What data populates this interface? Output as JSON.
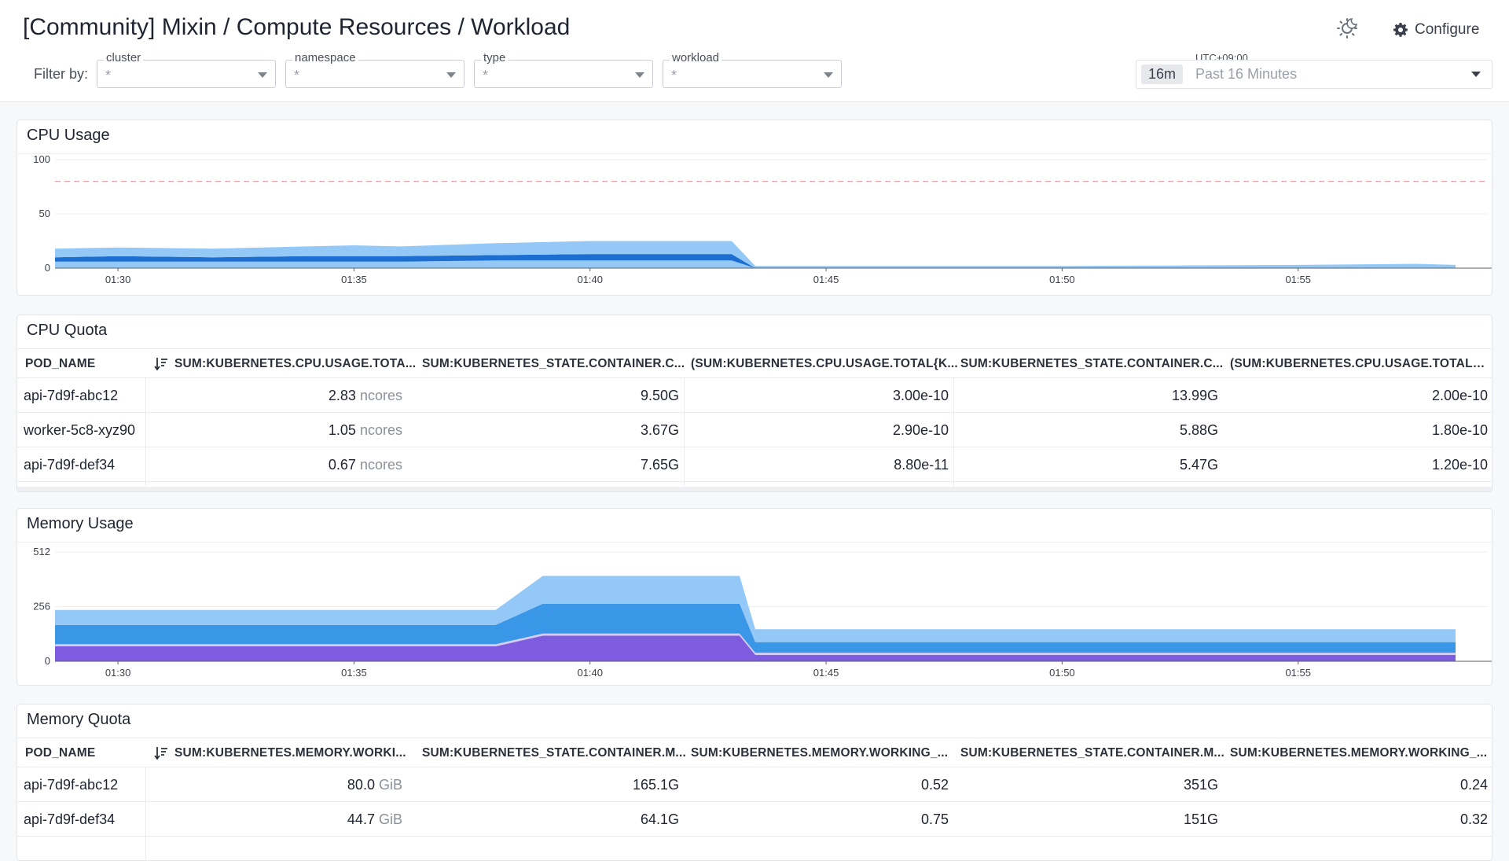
{
  "header": {
    "title": "[Community] Mixin / Compute Resources / Workload",
    "configure_label": "Configure",
    "filter_label": "Filter by:",
    "filters": [
      {
        "label": "cluster",
        "value": "*"
      },
      {
        "label": "namespace",
        "value": "*"
      },
      {
        "label": "type",
        "value": "*"
      },
      {
        "label": "workload",
        "value": "*"
      }
    ],
    "timepicker": {
      "timezone": "UTC+09:00",
      "badge": "16m",
      "label": "Past 16 Minutes"
    }
  },
  "cpu_usage": {
    "title": "CPU Usage",
    "chart_data": {
      "type": "area",
      "title": "CPU Usage",
      "x_ticks": [
        "01:30",
        "01:35",
        "01:40",
        "01:45",
        "01:50",
        "01:55"
      ],
      "y_ticks": [
        "0",
        "50",
        "100"
      ],
      "ylim": [
        0,
        100
      ],
      "threshold": 80,
      "x": [
        "01:28:40",
        "01:30",
        "01:32",
        "01:34",
        "01:35",
        "01:36",
        "01:38",
        "01:40",
        "01:42",
        "01:43",
        "01:43:30",
        "01:45",
        "01:50",
        "01:55",
        "01:57:30",
        "01:58:20"
      ],
      "series": [
        {
          "values": [
            6,
            6,
            6,
            6,
            6,
            6,
            7,
            7,
            7,
            7,
            0,
            0,
            0,
            0,
            0,
            0
          ]
        },
        {
          "values": [
            4,
            5,
            4,
            5,
            5,
            5,
            5,
            6,
            6,
            6,
            0,
            0,
            0,
            0,
            0,
            0
          ]
        },
        {
          "values": [
            8,
            8,
            8,
            9,
            10,
            9,
            11,
            12,
            12,
            12,
            2,
            2,
            2,
            3,
            4,
            3
          ]
        }
      ]
    }
  },
  "cpu_quota": {
    "title": "CPU Quota",
    "columns": [
      "POD_NAME",
      "SUM:KUBERNETES.CPU.USAGE.TOTA...",
      "SUM:KUBERNETES_STATE.CONTAINER.C...",
      "(SUM:KUBERNETES.CPU.USAGE.TOTAL{K...",
      "SUM:KUBERNETES_STATE.CONTAINER.C...",
      "(SUM:KUBERNETES.CPU.USAGE.TOTAL{K..."
    ],
    "rows": [
      {
        "pod": "api-7d9f-abc12",
        "v1": "2.83",
        "u1": "ncores",
        "v2": "9.50G",
        "v3": "3.00e-10",
        "v4": "13.99G",
        "v5": "2.00e-10"
      },
      {
        "pod": "worker-5c8-xyz90",
        "v1": "1.05",
        "u1": "ncores",
        "v2": "3.67G",
        "v3": "2.90e-10",
        "v4": "5.88G",
        "v5": "1.80e-10"
      },
      {
        "pod": "api-7d9f-def34",
        "v1": "0.67",
        "u1": "ncores",
        "v2": "7.65G",
        "v3": "8.80e-11",
        "v4": "5.47G",
        "v5": "1.20e-10"
      }
    ]
  },
  "memory_usage": {
    "title": "Memory Usage",
    "chart_data": {
      "type": "area",
      "title": "Memory Usage",
      "x_ticks": [
        "01:30",
        "01:35",
        "01:40",
        "01:45",
        "01:50",
        "01:55"
      ],
      "y_ticks": [
        "0",
        "256",
        "512"
      ],
      "ylim": [
        0,
        512
      ],
      "x": [
        "01:28:40",
        "01:30",
        "01:35",
        "01:38",
        "01:39",
        "01:40",
        "01:42",
        "01:43:10",
        "01:43:30",
        "01:45",
        "01:50",
        "01:55",
        "01:58:20"
      ],
      "series": [
        {
          "values": [
            70,
            70,
            70,
            70,
            120,
            120,
            120,
            120,
            30,
            30,
            30,
            30,
            30
          ]
        },
        {
          "values": [
            10,
            10,
            10,
            10,
            10,
            10,
            10,
            10,
            10,
            10,
            10,
            10,
            10
          ]
        },
        {
          "values": [
            90,
            90,
            90,
            90,
            140,
            140,
            140,
            140,
            50,
            50,
            50,
            50,
            50
          ]
        },
        {
          "values": [
            70,
            70,
            70,
            70,
            130,
            130,
            130,
            130,
            60,
            60,
            60,
            60,
            60
          ]
        }
      ]
    }
  },
  "memory_quota": {
    "title": "Memory Quota",
    "columns": [
      "POD_NAME",
      "SUM:KUBERNETES.MEMORY.WORKI...",
      "SUM:KUBERNETES_STATE.CONTAINER.M...",
      "SUM:KUBERNETES.MEMORY.WORKING_...",
      "SUM:KUBERNETES_STATE.CONTAINER.M...",
      "SUM:KUBERNETES.MEMORY.WORKING_..."
    ],
    "rows": [
      {
        "pod": "api-7d9f-abc12",
        "v1": "80.0",
        "u1": "GiB",
        "v2": "165.1G",
        "v3": "0.52",
        "v4": "351G",
        "v5": "0.24"
      },
      {
        "pod": "api-7d9f-def34",
        "v1": "44.7",
        "u1": "GiB",
        "v2": "64.1G",
        "v3": "0.75",
        "v4": "151G",
        "v5": "0.32"
      }
    ]
  },
  "colors": {
    "light_blue": "#94c9f7",
    "mid_blue": "#3a96e6",
    "dark_blue": "#1c6fd0",
    "purple": "#7e5ce0",
    "lavender": "#d4ccf5",
    "threshold": "#e3a3a8"
  }
}
